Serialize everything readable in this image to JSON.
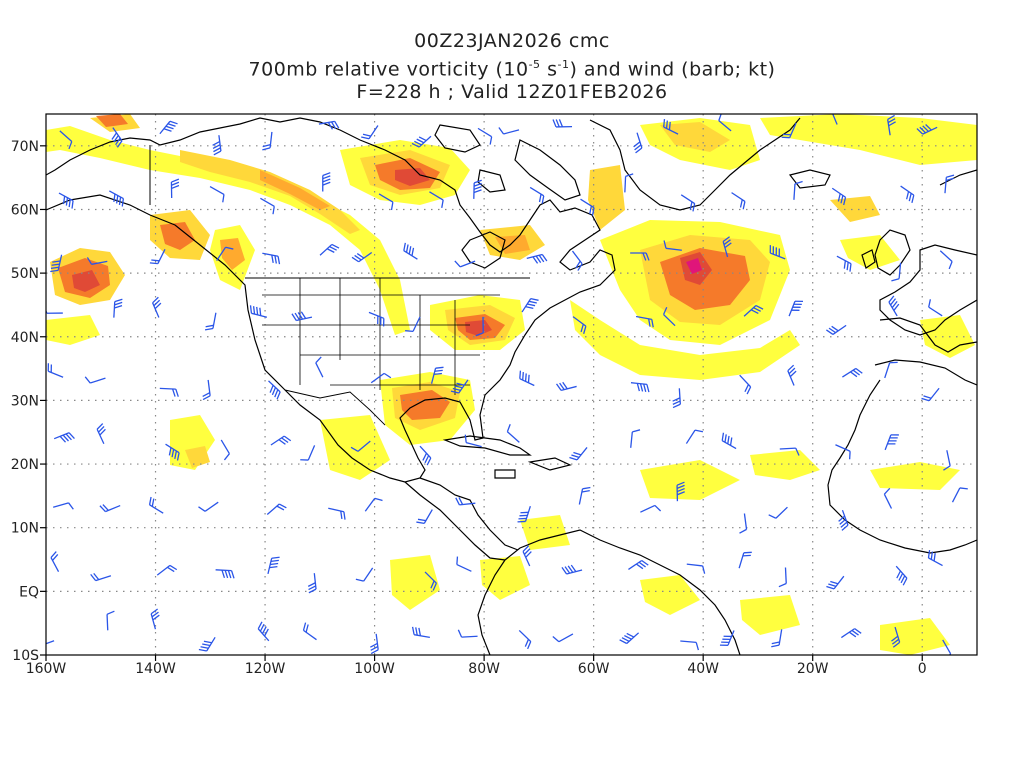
{
  "title": {
    "line1": "00Z23JAN2026 cmc",
    "line2_prefix": "700mb relative vorticity (10",
    "line2_exp1": "-5",
    "line2_mid": " s",
    "line2_exp2": "-1",
    "line2_suffix": ") and wind (barb; kt)",
    "line3": "F=228 h ; Valid 12Z01FEB2026"
  },
  "axes": {
    "lat_labels": [
      "70N",
      "60N",
      "50N",
      "40N",
      "30N",
      "20N",
      "10N",
      "EQ",
      "10S"
    ],
    "lat_values": [
      70,
      60,
      50,
      40,
      30,
      20,
      10,
      0,
      -10
    ],
    "lon_labels": [
      "160W",
      "140W",
      "120W",
      "100W",
      "80W",
      "60W",
      "40W",
      "20W",
      "0"
    ],
    "lon_values": [
      -160,
      -140,
      -120,
      -100,
      -80,
      -60,
      -40,
      -20,
      0
    ],
    "lon_range": [
      -160,
      10
    ],
    "lat_range": [
      -10,
      75
    ],
    "grid": "dotted"
  },
  "colors": {
    "shade_light": "#ffff3f",
    "shade_2": "#ffd83a",
    "shade_3": "#ffaa2e",
    "shade_4": "#f57a2a",
    "shade_5": "#e04a36",
    "shade_6": "#e0157a",
    "coast": "#000000",
    "barb": "#2a55e8",
    "grid": "#888888"
  }
}
